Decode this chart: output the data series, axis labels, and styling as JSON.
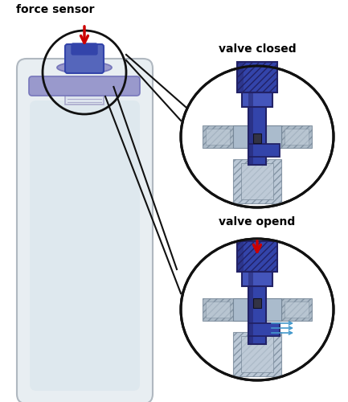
{
  "bg_color": "#ffffff",
  "label_force_sensor": "force sensor",
  "label_valve_closed": "valve closed",
  "label_valve_opend": "valve opend",
  "arrow_red_color": "#cc0000",
  "arrow_blue_color": "#4499cc",
  "label_fontsize": 10,
  "bottle_outer_color": "#e8eef2",
  "bottle_outline_color": "#b0b8c0",
  "bottle_fill_color": "#ccd8e0",
  "bottle_inner_color": "#d8e4ec",
  "cap_blue_color": "#5566bb",
  "cap_blue_dark": "#3344aa",
  "cap_flange_color": "#9999cc",
  "cap_flange_edge": "#7777bb",
  "neck_color": "#dde4ee",
  "neck_edge": "#aaaacc",
  "valve_blue": "#3344aa",
  "valve_blue_dark": "#222266",
  "valve_blue_mid": "#4455bb",
  "gray_hatch_color": "#8899aa",
  "gray_light": "#aabbcc",
  "gray_mid": "#99aabb",
  "gray_dark": "#778899",
  "gray_fill": "#c0ccd8",
  "circle_edge": "#111111",
  "line_color": "#111111"
}
